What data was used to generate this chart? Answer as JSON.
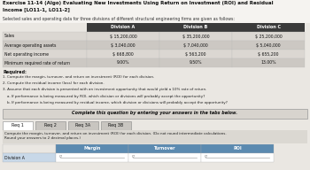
{
  "title_line1": "Exercise 11-14 (Algo) Evaluating New Investments Using Return on Investment (ROI) and Residual",
  "title_line2": "Income [LO11-1, LO11-2]",
  "subtitle": "Selected sales and operating data for three divisions of different structural engineering firms are given as follows:",
  "table_headers": [
    "Division A",
    "Division B",
    "Division C"
  ],
  "row_labels": [
    "Sales",
    "Average operating assets",
    "Net operating income",
    "Minimum required rate of return"
  ],
  "table_data": [
    [
      "$ 15,200,000",
      "$ 35,200,000",
      "$ 25,200,000"
    ],
    [
      "$ 3,040,000",
      "$ 7,040,000",
      "$ 5,040,000"
    ],
    [
      "$ 668,800",
      "$ 563,200",
      "$ 655,200"
    ],
    [
      "9.00%",
      "9.50%",
      "13.00%"
    ]
  ],
  "required_header": "Required:",
  "required_items": [
    "1. Compute the margin, turnover, and return on investment (ROI) for each division.",
    "2. Compute the residual income (loss) for each division.",
    "3. Assume that each division is presented with an investment opportunity that would yield a 10% rate of return.",
    "a. If performance is being measured by ROI, which division or divisions will probably accept the opportunity?",
    "b. If performance is being measured by residual income, which division or divisions will probably accept the opportunity?"
  ],
  "complete_box_text": "Complete this question by entering your answers in the tabs below.",
  "tabs": [
    "Req 1",
    "Req 2",
    "Req 3A",
    "Req 3B"
  ],
  "instruction_line1": "Compute the margin, turnover, and return on investment (ROI) for each division. (Do not round intermediate calculations.",
  "instruction_line2": "Round your answers to 2 decimal places.)",
  "col_headers_bottom": [
    "",
    "Margin",
    "Turnover",
    "ROI"
  ],
  "division_a_label": "Division A",
  "bg_color": "#eae7e2",
  "table_header_bg": "#3a3a3a",
  "complete_box_bg": "#d8d4ce",
  "tab_active_bg": "#ffffff",
  "tab_inactive_bg": "#c8c5c0",
  "instr_bg": "#dbd8d2",
  "bottom_header_bg": "#5b8ab0",
  "bottom_row_bg": "#c8d8e8",
  "white": "#ffffff"
}
